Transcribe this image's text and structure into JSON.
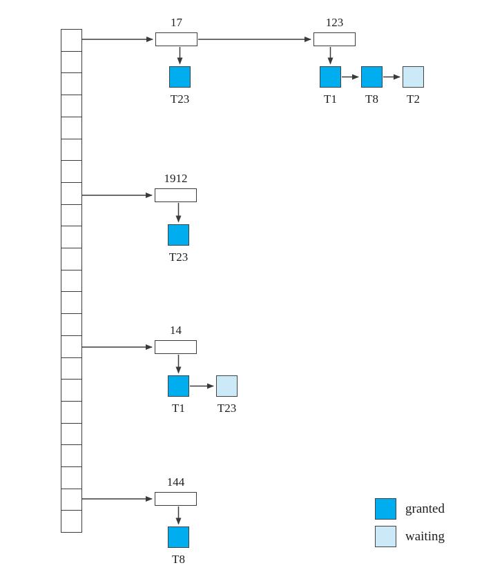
{
  "figure": {
    "type": "lock-table-diagram",
    "hash_table": {
      "cell_count": 23
    },
    "buckets": [
      {
        "cell_index": 1,
        "records": [
          {
            "id": "17",
            "locks": [
              {
                "txn": "T23",
                "status": "granted"
              }
            ]
          },
          {
            "id": "123",
            "locks": [
              {
                "txn": "T1",
                "status": "granted"
              },
              {
                "txn": "T8",
                "status": "granted"
              },
              {
                "txn": "T2",
                "status": "waiting"
              }
            ]
          }
        ]
      },
      {
        "cell_index": 8,
        "records": [
          {
            "id": "1912",
            "locks": [
              {
                "txn": "T23",
                "status": "granted"
              }
            ]
          }
        ]
      },
      {
        "cell_index": 15,
        "records": [
          {
            "id": "14",
            "locks": [
              {
                "txn": "T1",
                "status": "granted"
              },
              {
                "txn": "T23",
                "status": "waiting"
              }
            ]
          }
        ]
      },
      {
        "cell_index": 22,
        "records": [
          {
            "id": "144",
            "locks": [
              {
                "txn": "T8",
                "status": "granted"
              }
            ]
          }
        ]
      }
    ],
    "legend": [
      {
        "label": "granted",
        "status": "granted",
        "color": "#00AEEF"
      },
      {
        "label": "waiting",
        "status": "waiting",
        "color": "#CCE9F8"
      }
    ],
    "colors": {
      "granted": "#00AEEF",
      "waiting": "#CCE9F8",
      "line": "#3A3A3A",
      "background": "#FFFFFF"
    }
  }
}
